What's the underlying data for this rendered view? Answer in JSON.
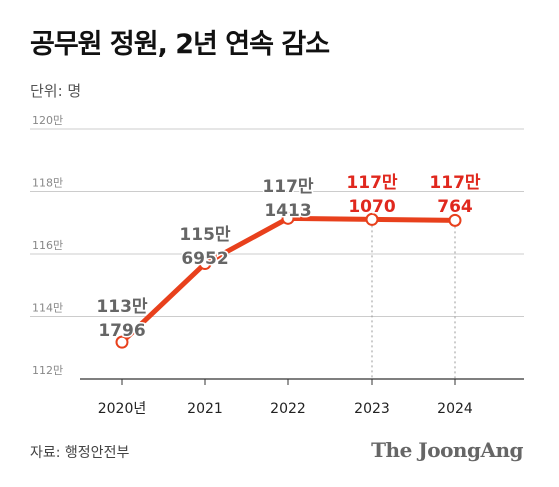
{
  "header": {
    "title": "공무원 정원, 2년 연속 감소",
    "unit": "단위: 명"
  },
  "footer": {
    "source": "자료: 행정안전부",
    "logo": "The JoongAng"
  },
  "colors": {
    "line": "#e8401c",
    "highlight": "#e0281e",
    "label": "#666666",
    "grid": "#cccccc"
  },
  "chart_data": {
    "type": "line",
    "title": "공무원 정원, 2년 연속 감소",
    "xlabel": "",
    "ylabel": "",
    "categories": [
      "2020년",
      "2021",
      "2022",
      "2023",
      "2024"
    ],
    "values": [
      1131796,
      1156952,
      1171413,
      1171070,
      1170764
    ],
    "ylim": [
      1120000,
      1200000
    ],
    "yticks": [
      1120000,
      1140000,
      1160000,
      1180000,
      1200000
    ],
    "ytick_labels": [
      "112만",
      "114만",
      "116만",
      "118만",
      "120만"
    ],
    "grid": true,
    "data_labels": [
      {
        "line1": "113만",
        "line2": "1796",
        "highlight": false
      },
      {
        "line1": "115만",
        "line2": "6952",
        "highlight": false
      },
      {
        "line1": "117만",
        "line2": "1413",
        "highlight": false
      },
      {
        "line1": "117만",
        "line2": "1070",
        "highlight": true
      },
      {
        "line1": "117만",
        "line2": "764",
        "highlight": true
      }
    ]
  }
}
